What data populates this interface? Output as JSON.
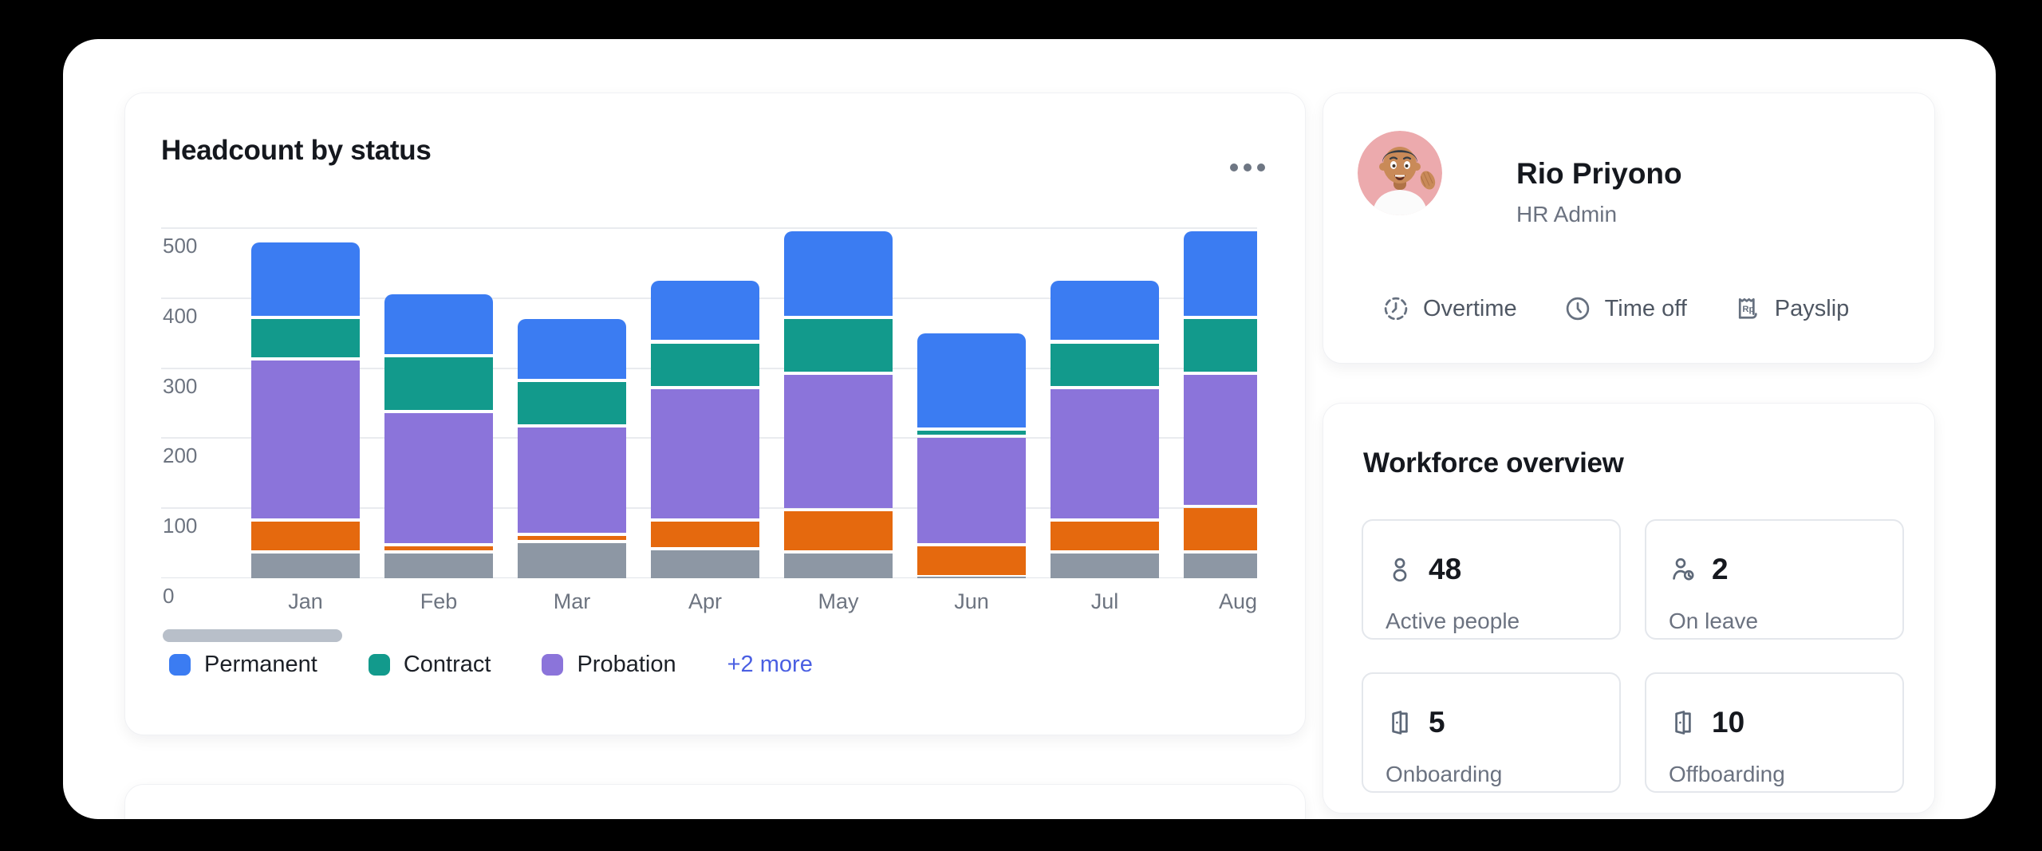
{
  "chart_card": {
    "title": "Headcount by status",
    "chart_data": {
      "type": "stacked-bar",
      "title": "Headcount by status",
      "categories": [
        "Jan",
        "Feb",
        "Mar",
        "Apr",
        "May",
        "Jun",
        "Jul",
        "Aug"
      ],
      "series": [
        {
          "name": "",
          "legend": "hidden under +2 more",
          "color": "#8d97a4",
          "values": [
            40,
            40,
            55,
            45,
            40,
            5,
            40,
            40
          ]
        },
        {
          "name": "",
          "legend": "hidden under +2 more",
          "color": "#e5690e",
          "values": [
            45,
            10,
            10,
            40,
            60,
            45,
            45,
            65
          ]
        },
        {
          "name": "Probation",
          "color": "#8b74da",
          "values": [
            230,
            190,
            155,
            190,
            195,
            155,
            190,
            190
          ]
        },
        {
          "name": "Contract",
          "color": "#129a8c",
          "values": [
            60,
            80,
            65,
            65,
            80,
            10,
            65,
            80
          ]
        },
        {
          "name": "Permanent",
          "color": "#3b7cf2",
          "values": [
            105,
            85,
            85,
            85,
            120,
            135,
            85,
            120
          ]
        }
      ],
      "stack_order": "bottom-to-top",
      "ylim": [
        0,
        500
      ],
      "yticks": [
        0,
        100,
        200,
        300,
        400,
        500
      ],
      "grid": true,
      "legend_position": "bottom"
    },
    "legend": {
      "items": [
        {
          "label": "Permanent",
          "color": "#3b7cf2"
        },
        {
          "label": "Contract",
          "color": "#129a8c"
        },
        {
          "label": "Probation",
          "color": "#8b74da"
        }
      ],
      "more_label": "+2 more",
      "more_color": "#4a5fe2"
    }
  },
  "profile_card": {
    "name": "Rio Priyono",
    "role": "HR Admin",
    "actions": [
      {
        "label": "Overtime",
        "icon": "overtime-clock-icon"
      },
      {
        "label": "Time off",
        "icon": "clock-icon"
      },
      {
        "label": "Payslip",
        "icon": "payslip-receipt-icon"
      }
    ]
  },
  "workforce_card": {
    "title": "Workforce overview",
    "stats": [
      {
        "value": "48",
        "label": "Active people",
        "icon": "user-icon"
      },
      {
        "value": "2",
        "label": "On leave",
        "icon": "user-clock-icon"
      },
      {
        "value": "5",
        "label": "Onboarding",
        "icon": "door-open-icon"
      },
      {
        "value": "10",
        "label": "Offboarding",
        "icon": "door-open-icon"
      }
    ]
  }
}
